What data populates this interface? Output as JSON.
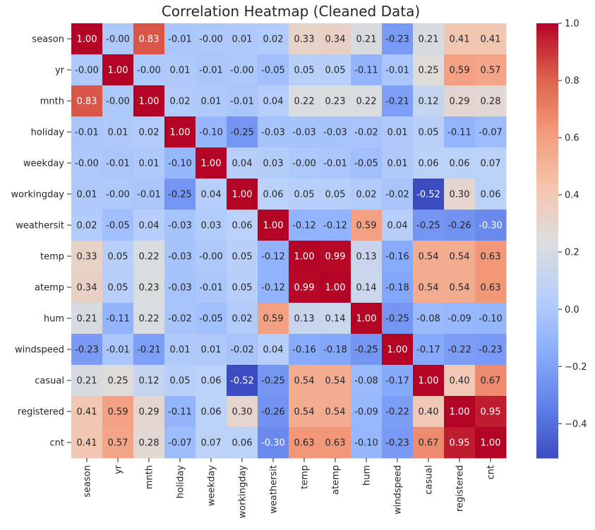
{
  "chart_data": {
    "type": "heatmap",
    "title": "Correlation Heatmap (Cleaned Data)",
    "xlabel": "",
    "ylabel": "",
    "labels": [
      "season",
      "yr",
      "mnth",
      "holiday",
      "weekday",
      "workingday",
      "weathersit",
      "temp",
      "atemp",
      "hum",
      "windspeed",
      "casual",
      "registered",
      "cnt"
    ],
    "matrix": [
      [
        1.0,
        -0.0,
        0.83,
        -0.01,
        -0.0,
        0.01,
        0.02,
        0.33,
        0.34,
        0.21,
        -0.23,
        0.21,
        0.41,
        0.41
      ],
      [
        -0.0,
        1.0,
        -0.0,
        0.01,
        -0.01,
        -0.0,
        -0.05,
        0.05,
        0.05,
        -0.11,
        -0.01,
        0.25,
        0.59,
        0.57
      ],
      [
        0.83,
        -0.0,
        1.0,
        0.02,
        0.01,
        -0.01,
        0.04,
        0.22,
        0.23,
        0.22,
        -0.21,
        0.12,
        0.29,
        0.28
      ],
      [
        -0.01,
        0.01,
        0.02,
        1.0,
        -0.1,
        -0.25,
        -0.03,
        -0.03,
        -0.03,
        -0.02,
        0.01,
        0.05,
        -0.11,
        -0.07
      ],
      [
        -0.0,
        -0.01,
        0.01,
        -0.1,
        1.0,
        0.04,
        0.03,
        -0.0,
        -0.01,
        -0.05,
        0.01,
        0.06,
        0.06,
        0.07
      ],
      [
        0.01,
        -0.0,
        -0.01,
        -0.25,
        0.04,
        1.0,
        0.06,
        0.05,
        0.05,
        0.02,
        -0.02,
        -0.52,
        0.3,
        0.06
      ],
      [
        0.02,
        -0.05,
        0.04,
        -0.03,
        0.03,
        0.06,
        1.0,
        -0.12,
        -0.12,
        0.59,
        0.04,
        -0.25,
        -0.26,
        -0.3
      ],
      [
        0.33,
        0.05,
        0.22,
        -0.03,
        -0.0,
        0.05,
        -0.12,
        1.0,
        0.99,
        0.13,
        -0.16,
        0.54,
        0.54,
        0.63
      ],
      [
        0.34,
        0.05,
        0.23,
        -0.03,
        -0.01,
        0.05,
        -0.12,
        0.99,
        1.0,
        0.14,
        -0.18,
        0.54,
        0.54,
        0.63
      ],
      [
        0.21,
        -0.11,
        0.22,
        -0.02,
        -0.05,
        0.02,
        0.59,
        0.13,
        0.14,
        1.0,
        -0.25,
        -0.08,
        -0.09,
        -0.1
      ],
      [
        -0.23,
        -0.01,
        -0.21,
        0.01,
        0.01,
        -0.02,
        0.04,
        -0.16,
        -0.18,
        -0.25,
        1.0,
        -0.17,
        -0.22,
        -0.23
      ],
      [
        0.21,
        0.25,
        0.12,
        0.05,
        0.06,
        -0.52,
        -0.25,
        0.54,
        0.54,
        -0.08,
        -0.17,
        1.0,
        0.4,
        0.67
      ],
      [
        0.41,
        0.59,
        0.29,
        -0.11,
        0.06,
        0.3,
        -0.26,
        0.54,
        0.54,
        -0.09,
        -0.22,
        0.4,
        1.0,
        0.95
      ],
      [
        0.41,
        0.57,
        0.28,
        -0.07,
        0.07,
        0.06,
        -0.3,
        0.63,
        0.63,
        -0.1,
        -0.23,
        0.67,
        0.95,
        1.0
      ]
    ],
    "colormap": "coolwarm",
    "vmin": -0.52,
    "vmax": 1.0,
    "colorbar_ticks": [
      1.0,
      0.8,
      0.6,
      0.4,
      0.2,
      0.0,
      -0.2,
      -0.4
    ],
    "colorbar_tick_labels": [
      "1.0",
      "0.8",
      "0.6",
      "0.4",
      "0.2",
      "0.0",
      "−0.2",
      "−0.4"
    ],
    "annotations": "values shown in each cell with two decimals",
    "grid": false
  }
}
